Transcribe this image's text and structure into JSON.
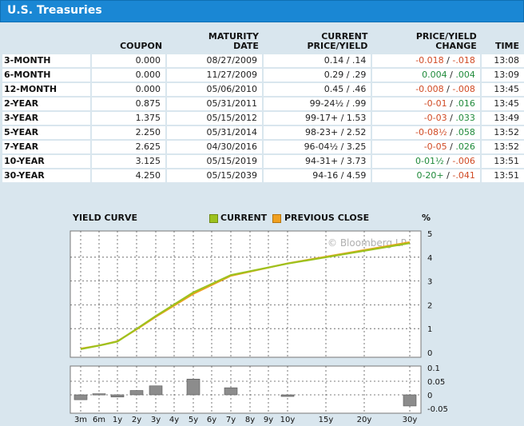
{
  "title": "U.S. Treasuries",
  "headers": {
    "coupon": "COUPON",
    "maturity": [
      "MATURITY",
      "DATE"
    ],
    "current": [
      "CURRENT",
      "PRICE/YIELD"
    ],
    "change": [
      "PRICE/YIELD",
      "CHANGE"
    ],
    "time": "TIME"
  },
  "rows": [
    {
      "name": "3-MONTH",
      "coupon": "0.000",
      "maturity": "08/27/2009",
      "current": "0.14 / .14",
      "chg_price": "-0.018",
      "chg_yield": "-.018",
      "chg_price_sign": "neg",
      "chg_yield_sign": "neg",
      "time": "13:08"
    },
    {
      "name": "6-MONTH",
      "coupon": "0.000",
      "maturity": "11/27/2009",
      "current": "0.29 / .29",
      "chg_price": "0.004",
      "chg_yield": ".004",
      "chg_price_sign": "pos",
      "chg_yield_sign": "pos",
      "time": "13:09"
    },
    {
      "name": "12-MONTH",
      "coupon": "0.000",
      "maturity": "05/06/2010",
      "current": "0.45 / .46",
      "chg_price": "-0.008",
      "chg_yield": "-.008",
      "chg_price_sign": "neg",
      "chg_yield_sign": "neg",
      "time": "13:45"
    },
    {
      "name": "2-YEAR",
      "coupon": "0.875",
      "maturity": "05/31/2011",
      "current": "99-24½ / .99",
      "chg_price": "-0-01",
      "chg_yield": ".016",
      "chg_price_sign": "neg",
      "chg_yield_sign": "pos",
      "time": "13:45"
    },
    {
      "name": "3-YEAR",
      "coupon": "1.375",
      "maturity": "05/15/2012",
      "current": "99-17+ / 1.53",
      "chg_price": "-0-03",
      "chg_yield": ".033",
      "chg_price_sign": "neg",
      "chg_yield_sign": "pos",
      "time": "13:49"
    },
    {
      "name": "5-YEAR",
      "coupon": "2.250",
      "maturity": "05/31/2014",
      "current": "98-23+ / 2.52",
      "chg_price": "-0-08½",
      "chg_yield": ".058",
      "chg_price_sign": "neg",
      "chg_yield_sign": "pos",
      "time": "13:52"
    },
    {
      "name": "7-YEAR",
      "coupon": "2.625",
      "maturity": "04/30/2016",
      "current": "96-04½ / 3.25",
      "chg_price": "-0-05",
      "chg_yield": ".026",
      "chg_price_sign": "neg",
      "chg_yield_sign": "pos",
      "time": "13:52"
    },
    {
      "name": "10-YEAR",
      "coupon": "3.125",
      "maturity": "05/15/2019",
      "current": "94-31+ / 3.73",
      "chg_price": "0-01½",
      "chg_yield": "-.006",
      "chg_price_sign": "pos",
      "chg_yield_sign": "neg",
      "time": "13:51"
    },
    {
      "name": "30-YEAR",
      "coupon": "4.250",
      "maturity": "05/15/2039",
      "current": "94-16 / 4.59",
      "chg_price": "0-20+",
      "chg_yield": "-.041",
      "chg_price_sign": "pos",
      "chg_yield_sign": "neg",
      "time": "13:51"
    }
  ],
  "colors": {
    "current": "#9dc21e",
    "previous": "#f0a020",
    "bar": "#8c8c8c",
    "pos": "#1f8a3a",
    "neg": "#d04a24",
    "header": "#1a87d4"
  },
  "chart": {
    "title": "YIELD CURVE",
    "legend_current": "CURRENT",
    "legend_previous": "PREVIOUS CLOSE",
    "unit": "%",
    "watermark": "© Bloomberg LP"
  },
  "chart_data": [
    {
      "type": "line",
      "title": "YIELD CURVE",
      "x": [
        "3m",
        "6m",
        "1y",
        "2y",
        "3y",
        "5y",
        "7y",
        "10y",
        "30y"
      ],
      "xpos_years": [
        0.25,
        0.5,
        1,
        2,
        3,
        5,
        7,
        10,
        30
      ],
      "series": [
        {
          "name": "CURRENT",
          "values": [
            0.14,
            0.29,
            0.46,
            0.99,
            1.53,
            2.52,
            3.25,
            3.73,
            4.59
          ]
        },
        {
          "name": "PREVIOUS CLOSE",
          "values": [
            0.16,
            0.29,
            0.47,
            0.97,
            1.5,
            2.46,
            3.22,
            3.74,
            4.63
          ]
        }
      ],
      "ylim": [
        0,
        5
      ],
      "yticks": [
        "0",
        "1",
        "2",
        "3",
        "4",
        "5"
      ],
      "xticks": [
        "3m",
        "6m",
        "1y",
        "2y",
        "3y",
        "4y",
        "5y",
        "6y",
        "7y",
        "8y",
        "9y",
        "10y",
        "15y",
        "20y",
        "30y"
      ],
      "ylabel": "%",
      "grid": true,
      "legend": "top"
    },
    {
      "type": "bar",
      "x": [
        "3m",
        "6m",
        "1y",
        "2y",
        "3y",
        "5y",
        "7y",
        "10y",
        "30y"
      ],
      "values": [
        -0.018,
        0.004,
        -0.008,
        0.016,
        0.033,
        0.058,
        0.026,
        -0.006,
        -0.041
      ],
      "ylim": [
        -0.05,
        0.1
      ],
      "yticks": [
        "0.1",
        "0.05",
        "0",
        "-0.05"
      ],
      "grid": true
    }
  ]
}
